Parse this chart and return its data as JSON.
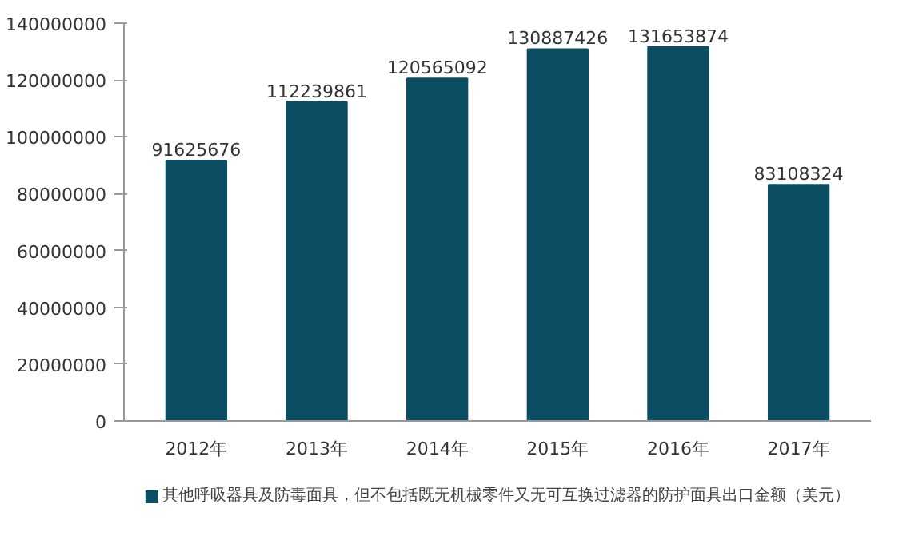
{
  "chart_data": {
    "type": "bar",
    "categories": [
      "2012年",
      "2013年",
      "2014年",
      "2015年",
      "2016年",
      "2017年"
    ],
    "series": [
      {
        "name": "其他呼吸器具及防毒面具，但不包括既无机械零件又无可互换过滤器的防护面具出口金额（美元）",
        "color": "#0b4d63",
        "values": [
          91625676,
          112239861,
          120565092,
          130887426,
          131653874,
          83108324
        ]
      }
    ],
    "ylim": [
      0,
      140000000
    ],
    "yticks": [
      0,
      20000000,
      40000000,
      60000000,
      80000000,
      100000000,
      120000000,
      140000000
    ],
    "data_labels": true,
    "grid": false,
    "legend": "bottom"
  }
}
